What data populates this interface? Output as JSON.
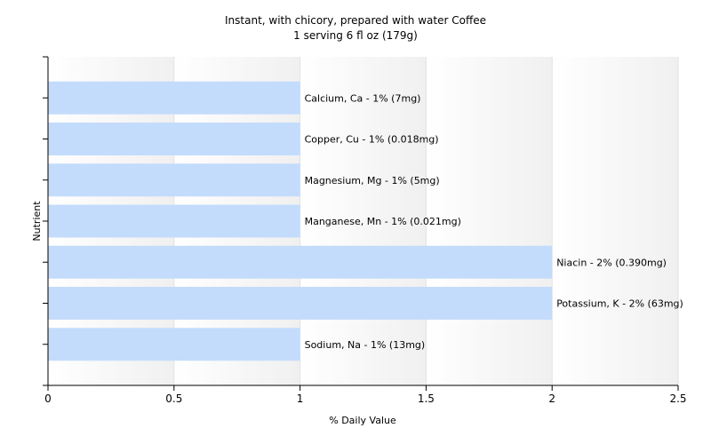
{
  "chart_data": {
    "type": "bar",
    "orientation": "horizontal",
    "title": "Instant, with chicory, prepared with water Coffee",
    "subtitle": "1 serving 6 fl oz (179g)",
    "xlabel": "% Daily Value",
    "ylabel": "Nutrient",
    "xlim": [
      0,
      2.5
    ],
    "x_ticks": [
      "0",
      "0.5",
      "1",
      "1.5",
      "2",
      "2.5"
    ],
    "grid": true,
    "bar_color": "#c4dcfc",
    "bars": [
      {
        "label": "Calcium, Ca - 1% (7mg)",
        "value": 1
      },
      {
        "label": "Copper, Cu - 1% (0.018mg)",
        "value": 1
      },
      {
        "label": "Magnesium, Mg - 1% (5mg)",
        "value": 1
      },
      {
        "label": "Manganese, Mn - 1% (0.021mg)",
        "value": 1
      },
      {
        "label": "Niacin - 2% (0.390mg)",
        "value": 2
      },
      {
        "label": "Potassium, K - 2% (63mg)",
        "value": 2
      },
      {
        "label": "Sodium, Na - 1% (13mg)",
        "value": 1
      }
    ]
  }
}
